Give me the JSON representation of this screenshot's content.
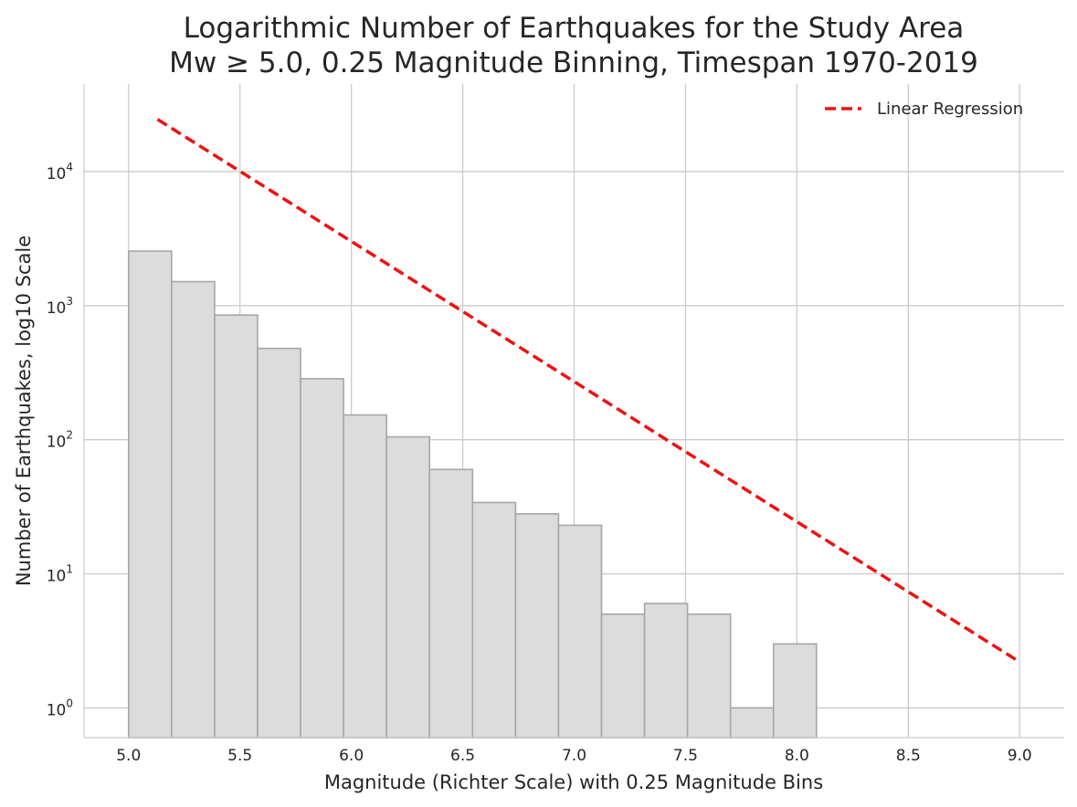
{
  "chart_data": {
    "type": "bar",
    "title": "Logarithmic Number of Earthquakes for the Study Area",
    "subtitle": "Mw ≥ 5.0, 0.25 Magnitude Binning, Timespan 1970-2019",
    "xlabel": "Magnitude (Richter Scale) with 0.25 Magnitude Bins",
    "ylabel": "Number of Earthquakes, log10 Scale",
    "x_scale": "linear",
    "y_scale": "log",
    "xlim": [
      4.8,
      9.2
    ],
    "ylim": [
      0.6,
      45000
    ],
    "grid": true,
    "legend_position": "top-right",
    "x_ticks": [
      {
        "value": 5.0,
        "label": "5.0"
      },
      {
        "value": 5.5,
        "label": "5.5"
      },
      {
        "value": 6.0,
        "label": "6.0"
      },
      {
        "value": 6.5,
        "label": "6.5"
      },
      {
        "value": 7.0,
        "label": "7.0"
      },
      {
        "value": 7.5,
        "label": "7.5"
      },
      {
        "value": 8.0,
        "label": "8.0"
      },
      {
        "value": 8.5,
        "label": "8.5"
      },
      {
        "value": 9.0,
        "label": "9.0"
      }
    ],
    "y_ticks": [
      {
        "value": 1,
        "base": "10",
        "exp": "0"
      },
      {
        "value": 10,
        "base": "10",
        "exp": "1"
      },
      {
        "value": 100,
        "base": "10",
        "exp": "2"
      },
      {
        "value": 1000,
        "base": "10",
        "exp": "3"
      },
      {
        "value": 10000,
        "base": "10",
        "exp": "4"
      }
    ],
    "histogram": {
      "bin_edges": [
        5.0,
        5.193,
        5.386,
        5.579,
        5.772,
        5.965,
        6.158,
        6.351,
        6.544,
        6.737,
        6.93,
        7.123,
        7.316,
        7.509,
        7.702,
        7.895,
        8.088
      ],
      "counts": [
        2550,
        1510,
        850,
        480,
        285,
        153,
        105,
        60,
        34,
        28,
        23,
        5,
        6,
        5,
        1,
        3
      ],
      "fill_color": "#dcdcdc",
      "edge_color": "#a6a6a6"
    },
    "series": [
      {
        "name": "Linear Regression",
        "type": "line",
        "style": "dashed",
        "color": "#ee1111",
        "x": [
          5.13,
          9.0
        ],
        "y": [
          24500,
          2.2
        ]
      }
    ]
  }
}
